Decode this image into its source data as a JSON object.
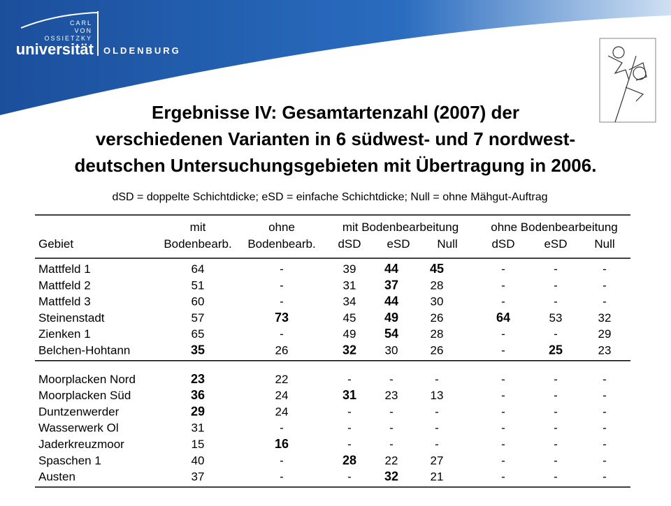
{
  "header": {
    "logo_small": [
      "CARL",
      "VON",
      "OSSIETZKY"
    ],
    "logo_main": "universität",
    "logo_city": "OLDENBURG"
  },
  "title": [
    "Ergebnisse IV: Gesamtartenzahl (2007) der",
    "verschiedenen Varianten in 6 südwest- und 7 nordwest-",
    "deutschen Untersuchungsgebieten mit Übertragung in 2006."
  ],
  "subtitle": "dSD = doppelte Schichtdicke; eSD = einfache Schichtdicke; Null = ohne Mähgut-Auftrag",
  "table": {
    "header_top": [
      "mit",
      "ohne",
      "mit Bodenbearbeitung",
      "ohne Bodenbearbeitung"
    ],
    "header": [
      "Gebiet",
      "Bodenbearb.",
      "Bodenbearb.",
      "dSD",
      "eSD",
      "Null",
      "dSD",
      "eSD",
      "Null"
    ],
    "groups": [
      [
        {
          "cells": [
            "Mattfeld 1",
            64,
            "-",
            39,
            44,
            45,
            "-",
            "-",
            "-"
          ],
          "bold": [
            4,
            5
          ]
        },
        {
          "cells": [
            "Mattfeld 2",
            51,
            "-",
            31,
            37,
            28,
            "-",
            "-",
            "-"
          ],
          "bold": [
            4
          ]
        },
        {
          "cells": [
            "Mattfeld 3",
            60,
            "-",
            34,
            44,
            30,
            "-",
            "-",
            "-"
          ],
          "bold": [
            4
          ]
        },
        {
          "cells": [
            "Steinenstadt",
            57,
            73,
            45,
            49,
            26,
            64,
            53,
            32
          ],
          "bold": [
            2,
            4,
            6
          ]
        },
        {
          "cells": [
            "Zienken 1",
            65,
            "-",
            49,
            54,
            28,
            "-",
            "-",
            29
          ],
          "bold": [
            4
          ]
        },
        {
          "cells": [
            "Belchen-Hohtann",
            35,
            26,
            32,
            30,
            26,
            "-",
            25,
            23
          ],
          "bold": [
            1,
            3,
            7
          ]
        }
      ],
      [
        {
          "cells": [
            "Moorplacken Nord",
            23,
            22,
            "-",
            "-",
            "-",
            "-",
            "-",
            "-"
          ],
          "bold": [
            1
          ]
        },
        {
          "cells": [
            "Moorplacken Süd",
            36,
            24,
            31,
            23,
            13,
            "-",
            "-",
            "-"
          ],
          "bold": [
            1,
            3
          ]
        },
        {
          "cells": [
            "Duntzenwerder",
            29,
            24,
            "-",
            "-",
            "-",
            "-",
            "-",
            "-"
          ],
          "bold": [
            1
          ]
        },
        {
          "cells": [
            "Wasserwerk Ol",
            31,
            "-",
            "-",
            "-",
            "-",
            "-",
            "-",
            "-"
          ],
          "bold": []
        },
        {
          "cells": [
            "Jaderkreuzmoor",
            15,
            16,
            "-",
            "-",
            "-",
            "-",
            "-",
            "-"
          ],
          "bold": [
            2
          ]
        },
        {
          "cells": [
            "Spaschen 1",
            40,
            "-",
            28,
            22,
            27,
            "-",
            "-",
            "-"
          ],
          "bold": [
            3
          ]
        },
        {
          "cells": [
            "Austen",
            37,
            "-",
            "-",
            32,
            21,
            "-",
            "-",
            "-"
          ],
          "bold": [
            4
          ]
        }
      ]
    ]
  }
}
